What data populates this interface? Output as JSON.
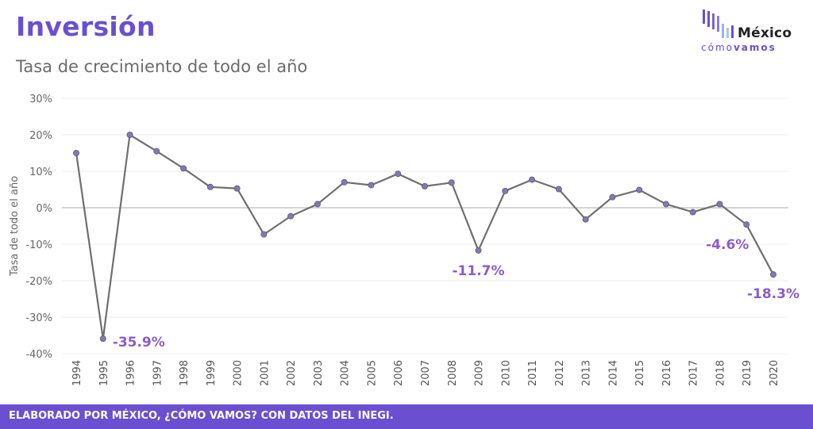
{
  "header": {
    "title": "Inversión",
    "subtitle": "Tasa de crecimiento  de todo el año"
  },
  "logo": {
    "name": "México",
    "tag_light": "cómo",
    "tag_bold": "vamos"
  },
  "footer": {
    "text": "ELABORADO POR MÉXICO, ¿CÓMO VAMOS? CON DATOS DEL INEGI."
  },
  "colors": {
    "accent": "#6a4fd1",
    "line": "#6f6f6f",
    "marker": "#8576ba",
    "annotation": "#8a5cd0"
  },
  "chart_data": {
    "type": "line",
    "title": "Inversión",
    "subtitle": "Tasa de crecimiento  de todo el año",
    "xlabel": "",
    "ylabel": "Tasa de todo el año",
    "ylim": [
      -40,
      30
    ],
    "yticks": [
      "30%",
      "20%",
      "10%",
      "0%",
      "-10%",
      "-20%",
      "-30%",
      "-40%"
    ],
    "ytick_values": [
      30,
      20,
      10,
      0,
      -10,
      -20,
      -30,
      -40
    ],
    "grid": true,
    "categories": [
      "1994",
      "1995",
      "1996",
      "1997",
      "1998",
      "1999",
      "2000",
      "2001",
      "2002",
      "2003",
      "2004",
      "2005",
      "2006",
      "2007",
      "2008",
      "2009",
      "2010",
      "2011",
      "2012",
      "2013",
      "2014",
      "2015",
      "2016",
      "2017",
      "2018",
      "2019",
      "2020"
    ],
    "series": [
      {
        "values": [
          15.0,
          -35.9,
          20.0,
          15.5,
          10.8,
          5.7,
          5.3,
          -7.3,
          -2.3,
          1.0,
          7.0,
          6.2,
          9.3,
          5.9,
          6.9,
          -11.7,
          4.6,
          7.7,
          5.1,
          -3.2,
          2.9,
          4.9,
          1.0,
          -1.2,
          1.0,
          -4.6,
          -18.3
        ]
      }
    ],
    "annotations": [
      {
        "category": "1995",
        "text": "-35.9%"
      },
      {
        "category": "2009",
        "text": "-11.7%"
      },
      {
        "category": "2019",
        "text": "-4.6%"
      },
      {
        "category": "2020",
        "text": "-18.3%"
      }
    ]
  }
}
